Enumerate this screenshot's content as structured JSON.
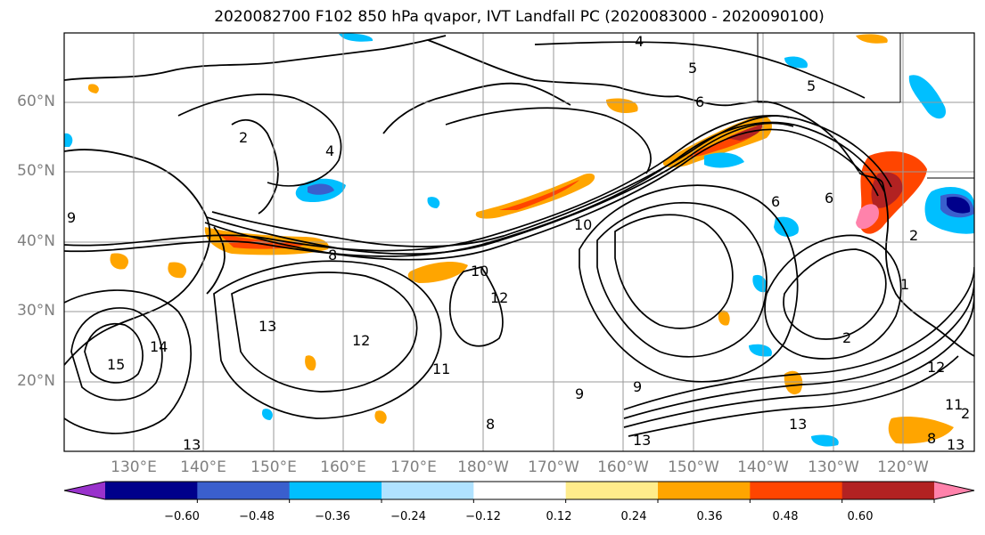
{
  "title": "2020082700 F102 850 hPa qvapor, IVT Landfall PC (2020083000 - 2020090100)",
  "latitude_labels": [
    "60°N",
    "50°N",
    "40°N",
    "30°N",
    "20°N"
  ],
  "longitude_labels": [
    "130°E",
    "140°E",
    "150°E",
    "160°E",
    "170°E",
    "180°W",
    "170°W",
    "160°W",
    "150°W",
    "140°W",
    "130°W",
    "120°W"
  ],
  "colorbar": {
    "ticks": [
      "−0.60",
      "−0.48",
      "−0.36",
      "−0.24",
      "−0.12",
      "0.12",
      "0.24",
      "0.36",
      "0.48",
      "0.60"
    ],
    "colors": [
      "#9932cc",
      "#00008b",
      "#3a5fcd",
      "#00bfff",
      "#b0e2ff",
      "#ffffff",
      "#ffec8b",
      "#ffa500",
      "#ff4500",
      "#b22222",
      "#ff82ab"
    ]
  },
  "contour_labels": [
    "4",
    "5",
    "5",
    "2",
    "4",
    "6",
    "6",
    "10",
    "10",
    "8",
    "12",
    "13",
    "12",
    "11",
    "14",
    "15",
    "13",
    "9",
    "9",
    "8",
    "9",
    "13",
    "12",
    "2",
    "2",
    "1",
    "6",
    "11",
    "13",
    "8",
    "2",
    "13"
  ]
}
